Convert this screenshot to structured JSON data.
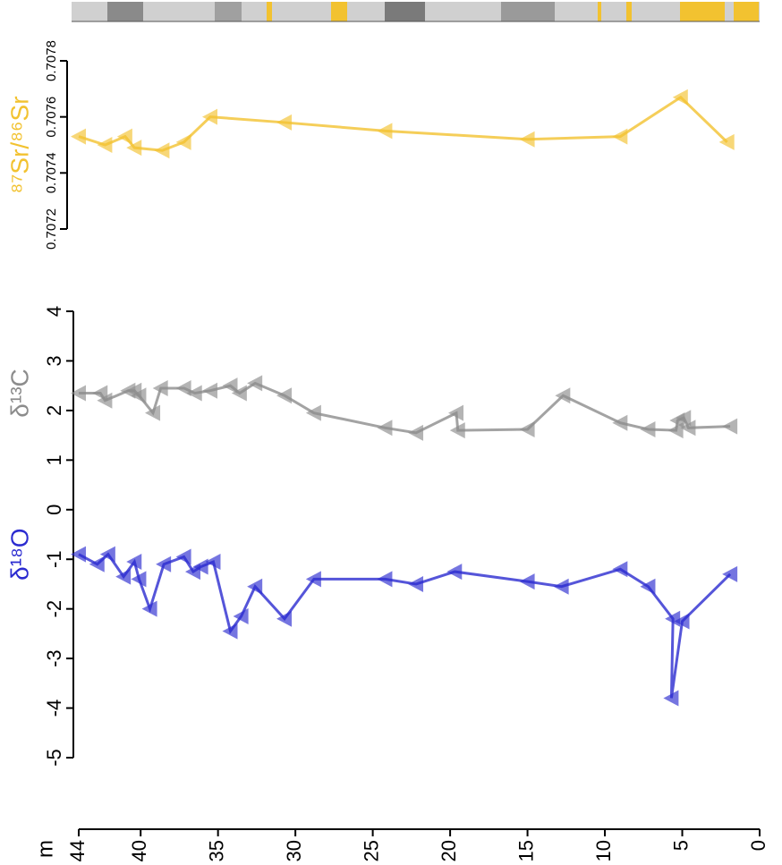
{
  "chart_data": [
    {
      "type": "line",
      "ylabel": "⁸⁷Sr/⁸⁶Sr",
      "xlim": [
        44,
        0
      ],
      "ylim": [
        0.7072,
        0.7078
      ],
      "yticks": [
        0.7072,
        0.7074,
        0.7076,
        0.7078
      ],
      "series": [
        {
          "name": "⁸⁷Sr/⁸⁶Sr",
          "color": "#f2c230",
          "x": [
            44.0,
            42.3,
            41.0,
            40.4,
            38.6,
            37.2,
            35.5,
            30.7,
            24.2,
            15.0,
            9.0,
            5.1,
            2.1
          ],
          "values": [
            0.70753,
            0.7075,
            0.70753,
            0.70749,
            0.70748,
            0.70751,
            0.7076,
            0.70758,
            0.70755,
            0.70752,
            0.70753,
            0.70767,
            0.70751
          ]
        }
      ]
    },
    {
      "type": "line",
      "xlabel": "m",
      "xlim": [
        44,
        0
      ],
      "xticks": [
        44,
        40,
        35,
        30,
        25,
        20,
        15,
        10,
        5,
        0
      ],
      "ylim": [
        -5,
        4
      ],
      "yticks": [
        -5,
        -4,
        -3,
        -2,
        -1,
        0,
        1,
        2,
        3,
        4
      ],
      "series": [
        {
          "name": "δ¹³C",
          "color": "#8c8c8c",
          "x": [
            44.0,
            42.6,
            42.3,
            40.8,
            40.4,
            40.1,
            39.2,
            38.7,
            37.2,
            36.5,
            35.5,
            34.2,
            33.6,
            32.6,
            30.7,
            28.8,
            24.2,
            22.2,
            19.6,
            19.5,
            15.0,
            12.7,
            9.0,
            7.2,
            5.4,
            5.3,
            4.9,
            4.6,
            1.9
          ],
          "values": [
            2.35,
            2.35,
            2.2,
            2.4,
            2.4,
            2.3,
            1.95,
            2.45,
            2.45,
            2.35,
            2.4,
            2.5,
            2.35,
            2.55,
            2.3,
            1.95,
            1.65,
            1.55,
            1.95,
            1.6,
            1.62,
            2.3,
            1.75,
            1.62,
            1.6,
            1.8,
            1.85,
            1.65,
            1.68
          ]
        },
        {
          "name": "δ¹⁸O",
          "color": "#2b2bd0",
          "x": [
            44.0,
            42.8,
            42.1,
            41.1,
            40.4,
            40.1,
            39.4,
            38.5,
            37.2,
            36.6,
            36.1,
            35.3,
            34.2,
            33.5,
            32.6,
            30.7,
            28.8,
            24.2,
            22.2,
            19.7,
            15.0,
            12.8,
            9.0,
            7.2,
            5.6,
            5.7,
            5.0,
            1.9
          ],
          "values": [
            -0.9,
            -1.1,
            -0.9,
            -1.35,
            -1.05,
            -1.4,
            -2.0,
            -1.1,
            -0.95,
            -1.25,
            -1.15,
            -1.05,
            -2.45,
            -2.15,
            -1.55,
            -2.2,
            -1.4,
            -1.4,
            -1.5,
            -1.25,
            -1.45,
            -1.55,
            -1.2,
            -1.55,
            -2.2,
            -3.8,
            -2.25,
            -1.3
          ]
        }
      ]
    }
  ]
}
